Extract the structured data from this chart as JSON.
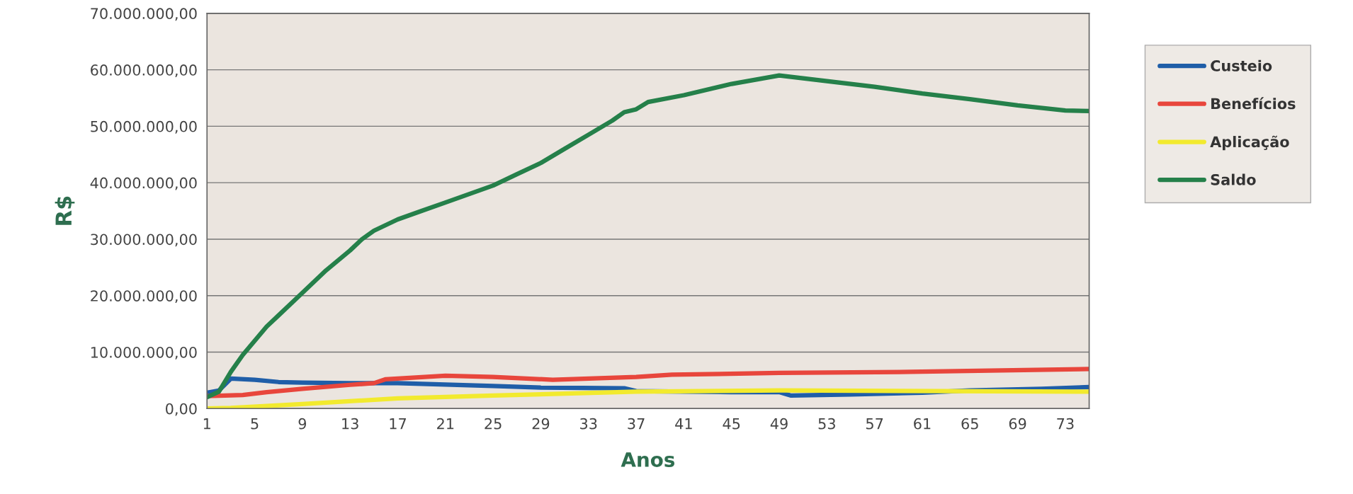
{
  "chart_data": {
    "type": "line",
    "xlabel": "Anos",
    "ylabel": "R$",
    "xlim": [
      1,
      75
    ],
    "xticks": [
      1,
      5,
      9,
      13,
      17,
      21,
      25,
      29,
      33,
      37,
      41,
      45,
      49,
      53,
      57,
      61,
      65,
      69,
      73
    ],
    "ylim": [
      0,
      70000000
    ],
    "yticks": [
      {
        "value": 0,
        "label": "0,00"
      },
      {
        "value": 10000000,
        "label": "10.000.000,00"
      },
      {
        "value": 20000000,
        "label": "20.000.000,00"
      },
      {
        "value": 30000000,
        "label": "30.000.000,00"
      },
      {
        "value": 40000000,
        "label": "40.000.000,00"
      },
      {
        "value": 50000000,
        "label": "50.000.000,00"
      },
      {
        "value": 60000000,
        "label": "60.000.000,00"
      },
      {
        "value": 70000000,
        "label": "70.000.000,00"
      }
    ],
    "grid": "y",
    "legend": "right",
    "marker": "none",
    "line_style": "solid",
    "series": [
      {
        "name": "Custeio",
        "color": "#1f5ea8",
        "x": [
          1,
          2,
          3,
          5,
          7,
          9,
          13,
          17,
          25,
          29,
          36,
          37,
          45,
          49,
          50,
          55,
          61,
          65,
          71,
          75
        ],
        "values": [
          2800000,
          3200000,
          5300000,
          5100000,
          4700000,
          4600000,
          4500000,
          4500000,
          4000000,
          3700000,
          3600000,
          3100000,
          2900000,
          2900000,
          2300000,
          2500000,
          2800000,
          3200000,
          3500000,
          3800000
        ]
      },
      {
        "name": "Benefícios",
        "color": "#e8463c",
        "x": [
          1,
          4,
          6,
          9,
          13,
          15,
          16,
          21,
          25,
          30,
          37,
          40,
          49,
          60,
          75
        ],
        "values": [
          2200000,
          2400000,
          2900000,
          3500000,
          4200000,
          4500000,
          5200000,
          5800000,
          5600000,
          5100000,
          5600000,
          6000000,
          6300000,
          6500000,
          7000000
        ]
      },
      {
        "name": "Aplicação",
        "color": "#f2ea2e",
        "x": [
          1,
          3,
          9,
          17,
          25,
          37,
          49,
          75
        ],
        "values": [
          0,
          100000,
          800000,
          1800000,
          2300000,
          3000000,
          3200000,
          3000000
        ]
      },
      {
        "name": "Saldo",
        "color": "#25804a",
        "x": [
          1,
          2,
          3,
          4,
          5,
          6,
          7,
          9,
          11,
          13,
          14,
          15,
          17,
          19,
          21,
          23,
          25,
          27,
          29,
          31,
          33,
          35,
          36,
          37,
          38,
          41,
          45,
          49,
          53,
          57,
          61,
          65,
          69,
          73,
          75
        ],
        "values": [
          2000000,
          3000000,
          6500000,
          9500000,
          12000000,
          14500000,
          16500000,
          20500000,
          24500000,
          28000000,
          30000000,
          31500000,
          33500000,
          35000000,
          36500000,
          38000000,
          39500000,
          41500000,
          43500000,
          46000000,
          48500000,
          51000000,
          52500000,
          53000000,
          54300000,
          55500000,
          57500000,
          59000000,
          58000000,
          57000000,
          55800000,
          54800000,
          53700000,
          52800000,
          52700000
        ]
      }
    ]
  }
}
